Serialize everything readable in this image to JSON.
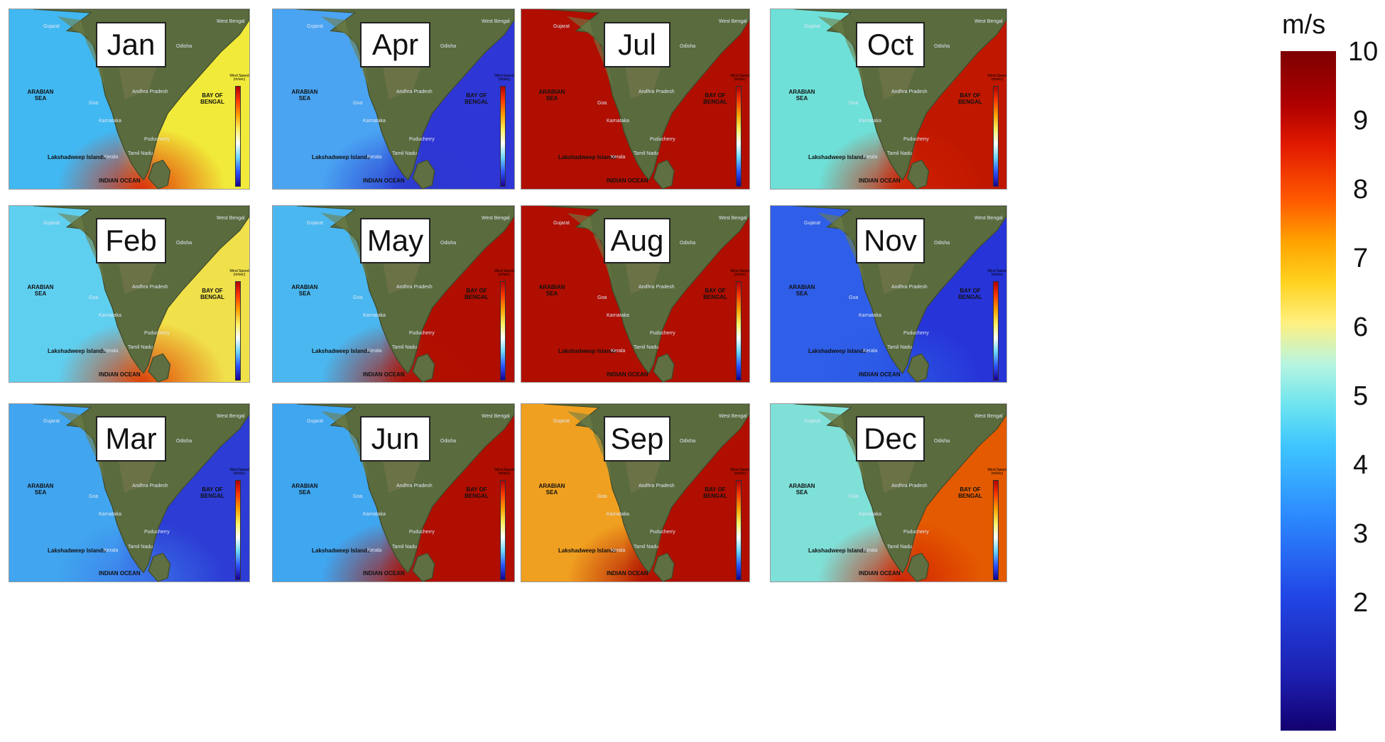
{
  "colorbar": {
    "unit": "m/s",
    "ticks": [
      "10",
      "9",
      "8",
      "7",
      "6",
      "5",
      "4",
      "3",
      "2"
    ]
  },
  "map_labels": {
    "arabian_sea": "ARABIAN SEA",
    "bay_of_bengal": "BAY OF BENGAL",
    "indian_ocean": "INDIAN OCEAN",
    "lakshadweep": "Lakshadweep Islands",
    "gujarat": "Gujarat",
    "west_bengal": "West Bengal",
    "odisha": "Odisha",
    "andhra_pradesh": "Andhra Pradesh",
    "goa": "Goa",
    "karnataka": "Karnataka",
    "puducherry": "Puducherry",
    "tamil_nadu": "Tamil Nadu",
    "kerala": "Kerala",
    "wind_speed": "Wind Speed (m/sec)"
  },
  "panels": [
    {
      "month": "Jan",
      "arabian": "#41b8f2",
      "bengal": "#f1ea3a",
      "south": "#e02800"
    },
    {
      "month": "Apr",
      "arabian": "#4aa4f2",
      "bengal": "#2f36d6",
      "south": "#2a38cf"
    },
    {
      "month": "Jul",
      "arabian": "#b00e00",
      "bengal": "#b00e00",
      "south": "#b00e00"
    },
    {
      "month": "Oct",
      "arabian": "#6ee0d8",
      "bengal": "#c01800",
      "south": "#d12000"
    },
    {
      "month": "Feb",
      "arabian": "#5fcff0",
      "bengal": "#f0e04a",
      "south": "#e03a00"
    },
    {
      "month": "May",
      "arabian": "#4ab7f0",
      "bengal": "#b00e00",
      "south": "#b21000"
    },
    {
      "month": "Aug",
      "arabian": "#b00e00",
      "bengal": "#b00e00",
      "south": "#b00e00"
    },
    {
      "month": "Nov",
      "arabian": "#2f5ee8",
      "bengal": "#2734d8",
      "south": "#2a58e4"
    },
    {
      "month": "Mar",
      "arabian": "#41a5ef",
      "bengal": "#2c3cd4",
      "south": "#3a76ea"
    },
    {
      "month": "Jun",
      "arabian": "#3fa6f0",
      "bengal": "#b00e00",
      "south": "#b00e00"
    },
    {
      "month": "Sep",
      "arabian": "#f0a020",
      "bengal": "#b00e00",
      "south": "#b00e00"
    },
    {
      "month": "Dec",
      "arabian": "#7fe0d8",
      "bengal": "#e45a00",
      "south": "#d12000"
    }
  ]
}
